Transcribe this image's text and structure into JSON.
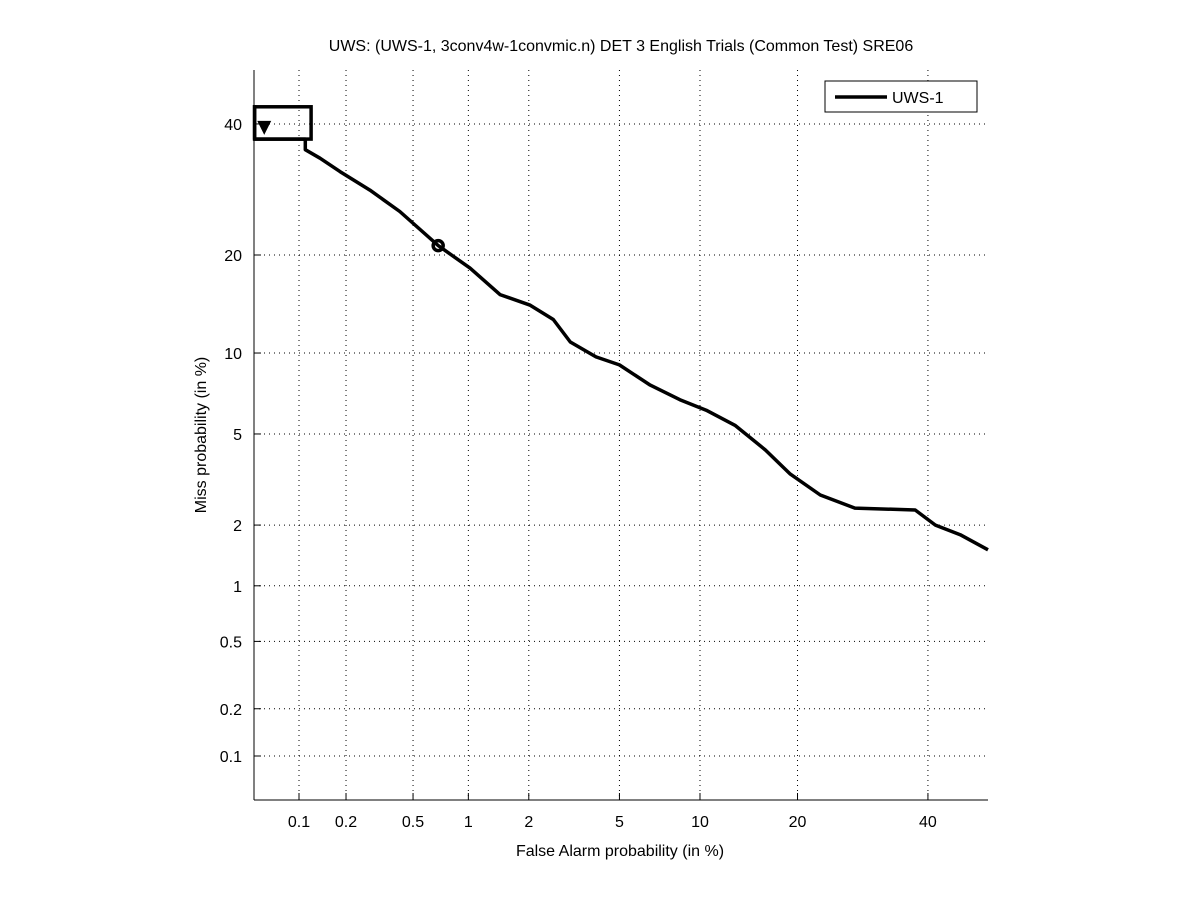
{
  "chart_data": {
    "type": "line",
    "title": "UWS: (UWS-1, 3conv4w-1convmic.n) DET 3 English Trials (Common Test) SRE06",
    "xlabel": "False Alarm probability (in %)",
    "ylabel": "Miss probability (in %)",
    "xscale": "probit",
    "yscale": "probit",
    "xlim": [
      0.05,
      51
    ],
    "ylim": [
      0.05,
      52
    ],
    "xticks": [
      0.1,
      0.2,
      0.5,
      1,
      2,
      5,
      10,
      20,
      40
    ],
    "xtick_labels": [
      "0.1",
      "0.2",
      "0.5",
      "1",
      "2",
      "5",
      "10",
      "20",
      "40"
    ],
    "yticks": [
      0.1,
      0.2,
      0.5,
      1,
      2,
      5,
      10,
      20,
      40
    ],
    "ytick_labels": [
      "0.1",
      "0.2",
      "0.5",
      "1",
      "2",
      "5",
      "10",
      "20",
      "40"
    ],
    "grid": true,
    "legend_position": "top-right",
    "series": [
      {
        "name": "UWS-1",
        "color": "#000000",
        "points": [
          [
            0.05,
            43.3
          ],
          [
            0.05,
            37.4
          ],
          [
            0.11,
            37.4
          ],
          [
            0.11,
            35.6
          ],
          [
            0.137,
            34.2
          ],
          [
            0.184,
            32.0
          ],
          [
            0.28,
            29.1
          ],
          [
            0.42,
            25.9
          ],
          [
            0.69,
            21.2
          ],
          [
            1.02,
            18.4
          ],
          [
            1.45,
            15.4
          ],
          [
            2.03,
            14.3
          ],
          [
            2.6,
            12.9
          ],
          [
            3.1,
            10.9
          ],
          [
            4.0,
            9.7
          ],
          [
            5.0,
            9.1
          ],
          [
            6.6,
            7.7
          ],
          [
            8.5,
            6.8
          ],
          [
            10.5,
            6.2
          ],
          [
            13.1,
            5.4
          ],
          [
            16.2,
            4.3
          ],
          [
            19.1,
            3.4
          ],
          [
            23,
            2.75
          ],
          [
            28,
            2.4
          ],
          [
            37.8,
            2.35
          ],
          [
            41.3,
            2.0
          ],
          [
            45.7,
            1.8
          ],
          [
            50.7,
            1.52
          ]
        ]
      }
    ],
    "markers": {
      "circle": [
        0.69,
        21.2
      ],
      "triangle_down": [
        0.053,
        39.5
      ],
      "box": {
        "fa": [
          0.05,
          0.12
        ],
        "miss": [
          37.4,
          43
        ]
      }
    }
  }
}
